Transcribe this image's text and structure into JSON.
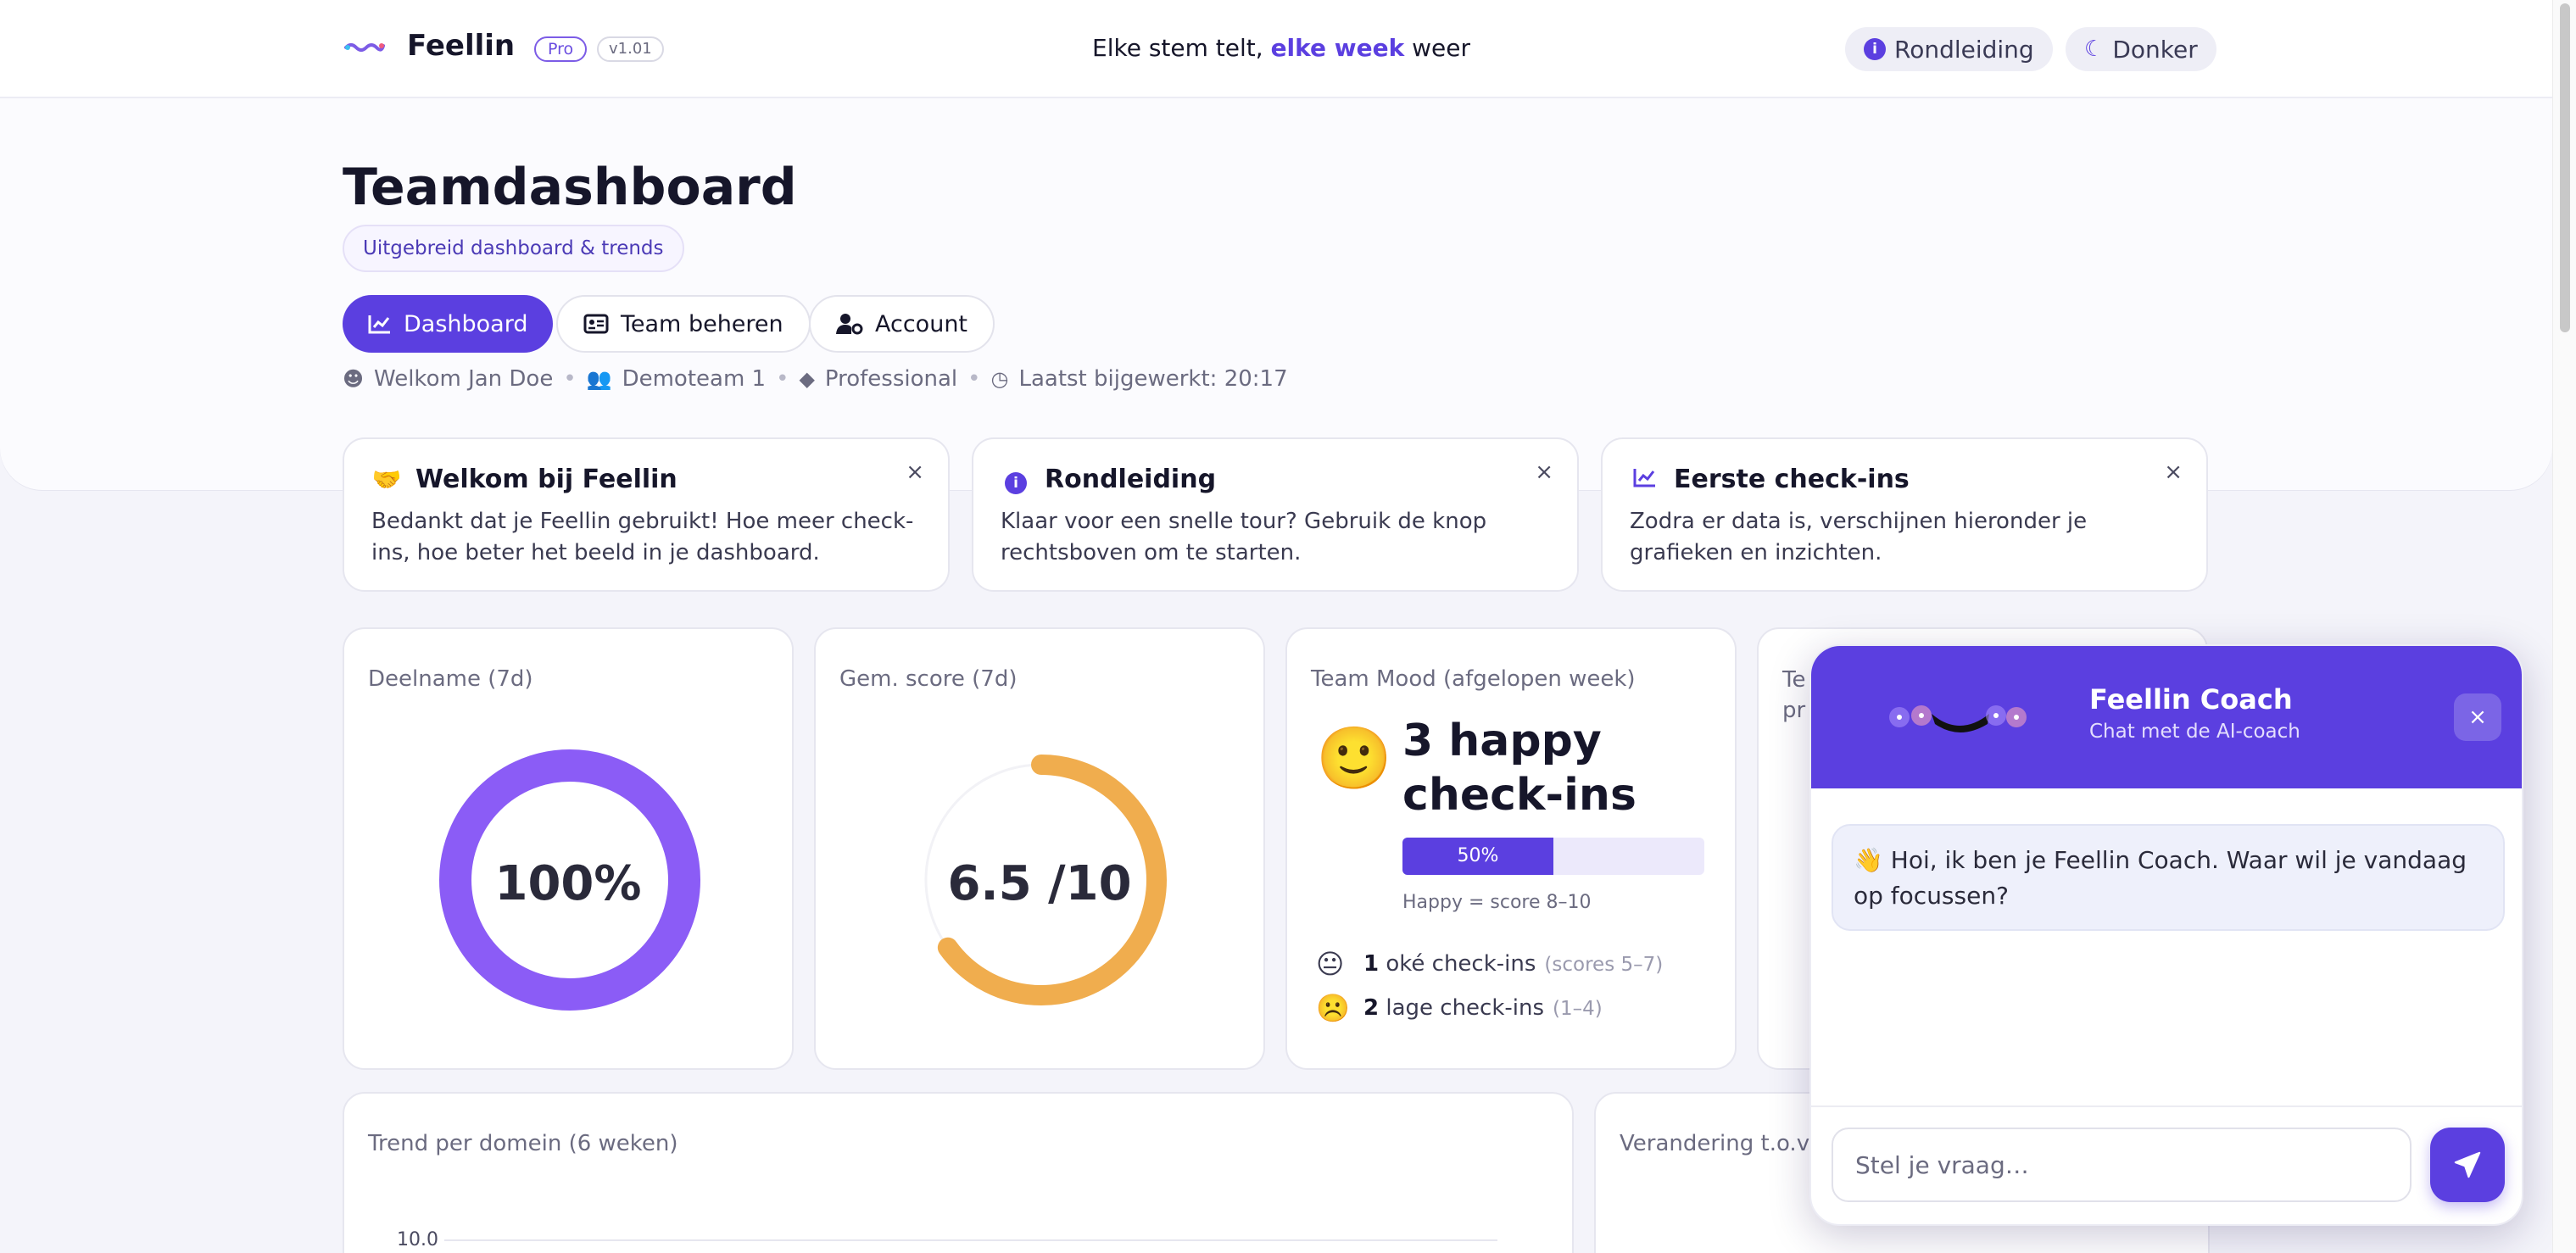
{
  "header": {
    "brand": "Feellin",
    "plan_badge": "Pro",
    "version": "v1.01",
    "tagline_pre": "Elke stem telt,",
    "tagline_em": "elke week",
    "tagline_post": "weer",
    "tour_button": "Rondleiding",
    "theme_button": "Donker"
  },
  "page": {
    "title": "Teamdashboard",
    "subtitle_chip": "Uitgebreid dashboard & trends",
    "tabs": [
      {
        "label": "Dashboard",
        "icon": "chart-line-icon",
        "active": true
      },
      {
        "label": "Team beheren",
        "icon": "id-card-icon",
        "active": false
      },
      {
        "label": "Account",
        "icon": "user-gear-icon",
        "active": false
      }
    ],
    "meta": {
      "welcome": "Welkom Jan Doe",
      "team": "Demoteam 1",
      "plan": "Professional",
      "updated": "Laatst bijgewerkt: 20:17"
    }
  },
  "notices": [
    {
      "title": "Welkom bij Feellin",
      "body": "Bedankt dat je Feellin gebruikt! Hoe meer check-ins, hoe beter het beeld in je dashboard.",
      "icon": "handshake-icon"
    },
    {
      "title": "Rondleiding",
      "body": "Klaar voor een snelle tour? Gebruik de knop rechtsboven om te starten.",
      "icon": "info-icon"
    },
    {
      "title": "Eerste check-ins",
      "body": "Zodra er data is, verschijnen hieronder je grafieken en inzichten.",
      "icon": "chart-line-icon"
    }
  ],
  "kpis": {
    "participation": {
      "label": "Deelname (7d)",
      "value": "100%",
      "fraction": 1.0,
      "color": "#8b5cf6"
    },
    "avg_score": {
      "label": "Gem. score (7d)",
      "value": "6.5 /10",
      "fraction": 0.65,
      "color": "#f0ad4e"
    },
    "team_mood": {
      "label": "Team Mood (afgelopen week)",
      "headline": "3 happy check-ins",
      "happy_pct": "50%",
      "happy_fraction": 0.5,
      "happy_note": "Happy = score 8–10",
      "rows": [
        {
          "count": "1",
          "label": "oké check-ins",
          "range": "(scores 5–7)",
          "emoji": "😐"
        },
        {
          "count": "2",
          "label": "lage check-ins",
          "range": "(1–4)",
          "emoji": "☹️"
        }
      ]
    },
    "fourth": {
      "label_line1": "Te",
      "label_line2": "pr"
    }
  },
  "trend_card": {
    "label": "Trend per domein (6 weken)",
    "y_top_tick": "10.0"
  },
  "change_card": {
    "label": "Verandering t.o.v. v"
  },
  "chat": {
    "title": "Feellin Coach",
    "subtitle": "Chat met de AI-coach",
    "message": "👋 Hoi, ik ben je Feellin Coach. Waar wil je vandaag op focussen?",
    "input_placeholder": "Stel je vraag…",
    "close": "×"
  },
  "colors": {
    "accent": "#5b3fe0",
    "participation": "#8b5cf6",
    "score": "#f0ad4e"
  }
}
